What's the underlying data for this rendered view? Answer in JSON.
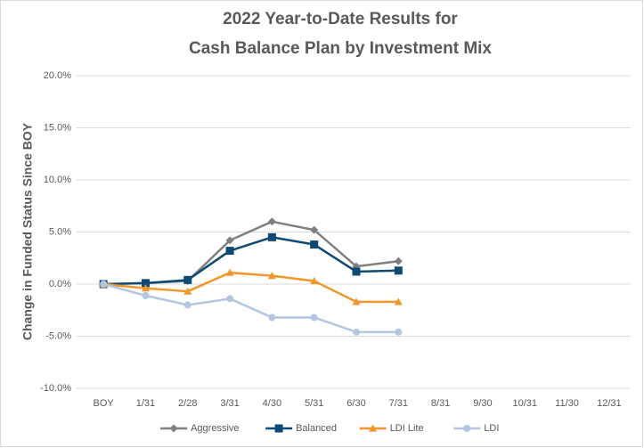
{
  "chart_data": {
    "type": "line",
    "title": [
      "2022 Year-to-Date Results for",
      "Cash Balance Plan by Investment Mix"
    ],
    "y_label": "Change in Funded Status Since BOY",
    "categories": [
      "BOY",
      "1/31",
      "2/28",
      "3/31",
      "4/30",
      "5/31",
      "6/30",
      "7/31",
      "8/31",
      "9/30",
      "10/31",
      "11/30",
      "12/31"
    ],
    "series": [
      {
        "name": "Aggressive",
        "color": "#808080",
        "marker": "diamond",
        "values": [
          0,
          0.1,
          0.3,
          4.2,
          6.0,
          5.2,
          1.7,
          2.2,
          null,
          null,
          null,
          null,
          null
        ]
      },
      {
        "name": "Balanced",
        "color": "#0e4a74",
        "marker": "square",
        "values": [
          0,
          0.1,
          0.4,
          3.2,
          4.5,
          3.8,
          1.2,
          1.3,
          null,
          null,
          null,
          null,
          null
        ]
      },
      {
        "name": "LDI Lite",
        "color": "#f0962a",
        "marker": "triangle",
        "values": [
          0,
          -0.4,
          -0.7,
          1.1,
          0.8,
          0.3,
          -1.7,
          -1.7,
          null,
          null,
          null,
          null,
          null
        ]
      },
      {
        "name": "LDI",
        "color": "#b4c6e0",
        "marker": "circle",
        "values": [
          0,
          -1.1,
          -2.0,
          -1.4,
          -3.2,
          -3.2,
          -4.6,
          -4.6,
          null,
          null,
          null,
          null,
          null
        ]
      }
    ],
    "ylim": [
      -10,
      20
    ],
    "yticks": [
      {
        "value": -10,
        "label": "-10.0%"
      },
      {
        "value": -5,
        "label": "-5.0%"
      },
      {
        "value": 0,
        "label": "0.0%"
      },
      {
        "value": 5,
        "label": "5.0%"
      },
      {
        "value": 10,
        "label": "10.0%"
      },
      {
        "value": 15,
        "label": "15.0%"
      },
      {
        "value": 20,
        "label": "20.0%"
      }
    ],
    "grid": true,
    "legend": "bottom"
  }
}
